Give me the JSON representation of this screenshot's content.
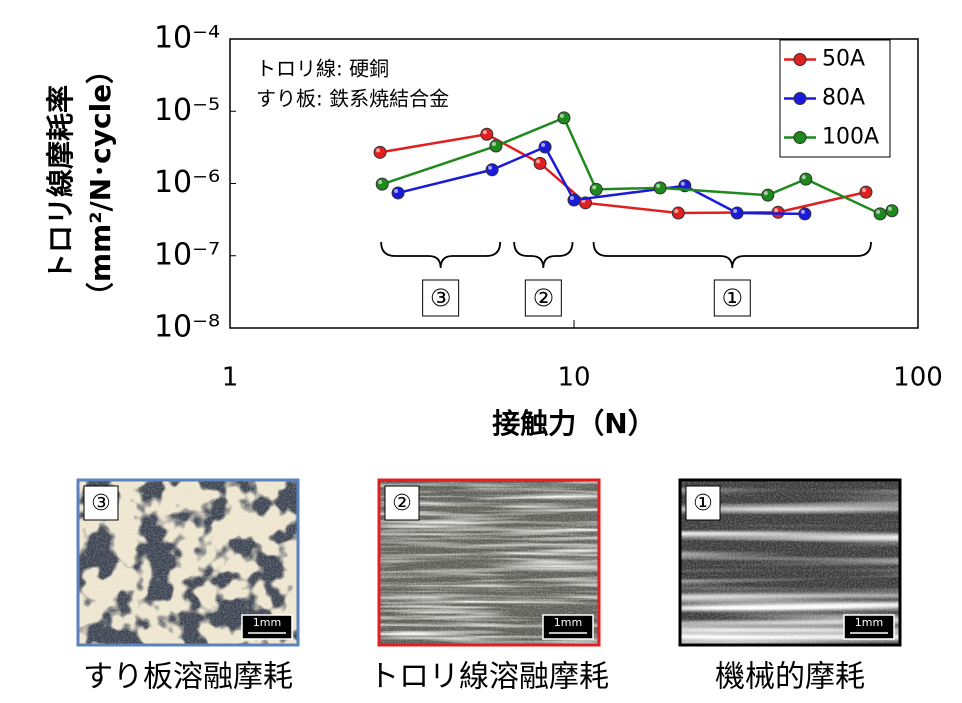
{
  "chart_data": {
    "type": "line",
    "ylabel_lines": [
      "トロリ線摩耗率",
      "（mm²/N･cycle）"
    ],
    "xlabel": "接触力（N）",
    "notes": [
      "トロリ線: 硬銅",
      "すり板: 鉄系焼結合金"
    ],
    "xscale": "log",
    "yscale": "log",
    "xlim": [
      1,
      100
    ],
    "xticks": [
      1,
      10,
      100
    ],
    "ylim": [
      1e-08,
      0.0001
    ],
    "yticks": [
      {
        "value": 1e-08,
        "label": "10⁻⁸"
      },
      {
        "value": 1e-07,
        "label": "10⁻⁷"
      },
      {
        "value": 1e-06,
        "label": "10⁻⁶"
      },
      {
        "value": 1e-05,
        "label": "10⁻⁵"
      },
      {
        "value": 0.0001,
        "label": "10⁻⁴"
      }
    ],
    "grid": false,
    "legend": "top-right",
    "series": [
      {
        "name": "50A",
        "color": "#e02020",
        "x": [
          2.73,
          5.58,
          7.97,
          10.8,
          20.1,
          39.2,
          70.6
        ],
        "values": [
          2.7e-06,
          4.8e-06,
          1.9e-06,
          5.4e-07,
          3.9e-07,
          4e-07,
          7.6e-07
        ]
      },
      {
        "name": "80A",
        "color": "#1a1adc",
        "x": [
          3.08,
          5.78,
          8.24,
          10,
          21,
          29.8,
          46.9
        ],
        "values": [
          7.4e-07,
          1.55e-06,
          3.2e-06,
          5.9e-07,
          9.3e-07,
          3.9e-07,
          3.8e-07
        ]
      },
      {
        "name": "100A",
        "color": "#1e8a1e",
        "x": [
          2.77,
          5.93,
          9.35,
          11.6,
          17.8,
          36.6,
          47.2,
          77.6,
          84
        ],
        "values": [
          9.8e-07,
          3.3e-06,
          8.1e-06,
          8.3e-07,
          8.7e-07,
          6.9e-07,
          1.15e-06,
          3.8e-07,
          4.2e-07
        ]
      }
    ],
    "regions": [
      {
        "label": "③",
        "from": 2.75,
        "to": 6.1
      },
      {
        "label": "②",
        "from": 6.7,
        "to": 9.9
      },
      {
        "label": "①",
        "from": 11.4,
        "to": 73
      }
    ]
  },
  "panels": [
    {
      "label": "③",
      "caption": "すり板溶融摩耗",
      "scale": "1mm",
      "border": "#5a82c0"
    },
    {
      "label": "②",
      "caption": "トロリ線溶融摩耗",
      "scale": "1mm",
      "border": "#e02020"
    },
    {
      "label": "①",
      "caption": "機械的摩耗",
      "scale": "1mm",
      "border": "#000000"
    }
  ]
}
